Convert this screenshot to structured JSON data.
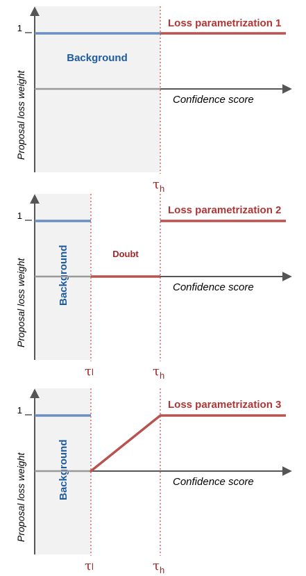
{
  "panels": [
    {
      "title": "Loss parametrization 1",
      "background_label": "Background",
      "y_axis_label": "Proposal loss weight",
      "x_axis_label": "Confidence score",
      "one_tick": "1",
      "threshold_high": {
        "symbol": "τ",
        "sub": "h"
      }
    },
    {
      "title": "Loss parametrization 2",
      "background_label": "Background",
      "doubt_label": "Doubt",
      "y_axis_label": "Proposal loss weight",
      "x_axis_label": "Confidence score",
      "one_tick": "1",
      "threshold_low": {
        "symbol": "τ",
        "sub": "l"
      },
      "threshold_high": {
        "symbol": "τ",
        "sub": "h"
      }
    },
    {
      "title": "Loss parametrization 3",
      "background_label": "Background",
      "y_axis_label": "Proposal loss weight",
      "x_axis_label": "Confidence score",
      "one_tick": "1",
      "threshold_low": {
        "symbol": "τ",
        "sub": "l"
      },
      "threshold_high": {
        "symbol": "τ",
        "sub": "h"
      }
    }
  ],
  "colors": {
    "background_line": "#6c8ebf",
    "weight_line": "#b85450",
    "threshold_line": "#d86a6a",
    "shaded_region": "#f2f2f2",
    "axis": "#555555",
    "baseline": "#999999"
  }
}
